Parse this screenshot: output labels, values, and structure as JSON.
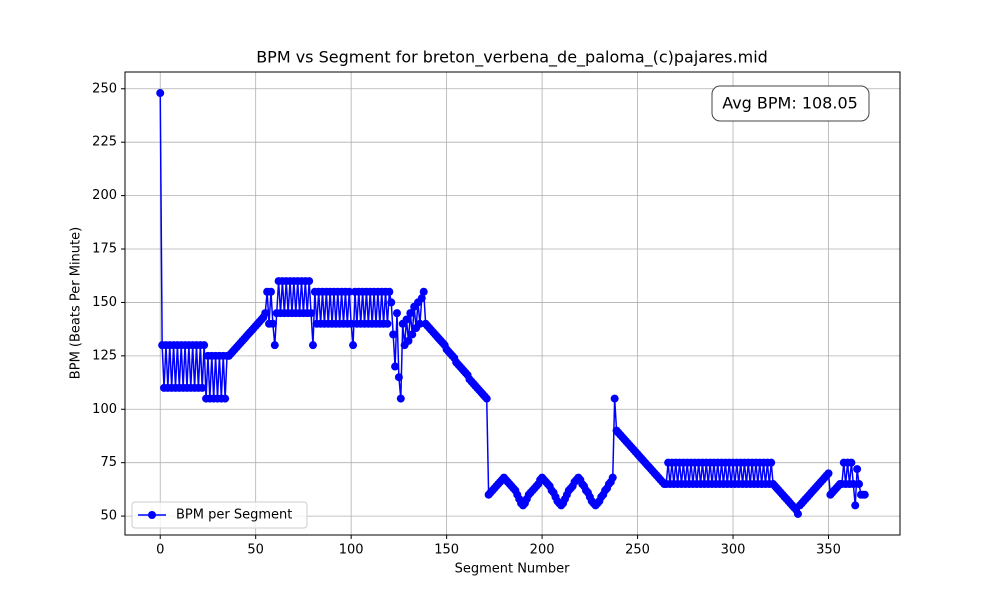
{
  "chart_data": {
    "type": "line",
    "title": "BPM vs Segment for breton_verbena_de_paloma_(c)pajares.mid",
    "x_label": "Segment Number",
    "y_label": "BPM (Beats Per Minute)",
    "annotation": "Avg BPM: 108.05",
    "legend_position": "lower left",
    "grid": true,
    "xlim": [
      -18.45,
      387.45
    ],
    "ylim": [
      41.15,
      257.85
    ],
    "xticks": [
      0,
      50,
      100,
      150,
      200,
      250,
      300,
      350
    ],
    "yticks": [
      50,
      75,
      100,
      125,
      150,
      175,
      200,
      225,
      250
    ],
    "x": [
      0,
      1,
      2,
      3,
      4,
      5,
      6,
      7,
      8,
      9,
      10,
      11,
      12,
      13,
      14,
      15,
      16,
      17,
      18,
      19,
      20,
      21,
      22,
      23,
      24,
      25,
      26,
      27,
      28,
      29,
      30,
      31,
      32,
      33,
      34,
      35,
      36,
      37,
      38,
      39,
      40,
      41,
      42,
      43,
      44,
      45,
      46,
      47,
      48,
      49,
      50,
      51,
      52,
      53,
      54,
      55,
      56,
      57,
      58,
      59,
      60,
      61,
      62,
      63,
      64,
      65,
      66,
      67,
      68,
      69,
      70,
      71,
      72,
      73,
      74,
      75,
      76,
      77,
      78,
      79,
      80,
      81,
      82,
      83,
      84,
      85,
      86,
      87,
      88,
      89,
      90,
      91,
      92,
      93,
      94,
      95,
      96,
      97,
      98,
      99,
      100,
      101,
      102,
      103,
      104,
      105,
      106,
      107,
      108,
      109,
      110,
      111,
      112,
      113,
      114,
      115,
      116,
      117,
      118,
      119,
      120,
      121,
      122,
      123,
      124,
      125,
      126,
      127,
      128,
      129,
      130,
      131,
      132,
      133,
      134,
      135,
      136,
      137,
      138,
      139,
      140,
      141,
      142,
      143,
      144,
      145,
      146,
      147,
      148,
      149,
      150,
      151,
      152,
      153,
      154,
      155,
      156,
      157,
      158,
      159,
      160,
      161,
      162,
      163,
      164,
      165,
      166,
      167,
      168,
      169,
      170,
      171,
      172,
      173,
      174,
      175,
      176,
      177,
      178,
      179,
      180,
      181,
      182,
      183,
      184,
      185,
      186,
      187,
      188,
      189,
      190,
      191,
      192,
      193,
      194,
      195,
      196,
      197,
      198,
      199,
      200,
      201,
      202,
      203,
      204,
      205,
      206,
      207,
      208,
      209,
      210,
      211,
      212,
      213,
      214,
      215,
      216,
      217,
      218,
      219,
      220,
      221,
      222,
      223,
      224,
      225,
      226,
      227,
      228,
      229,
      230,
      231,
      232,
      233,
      234,
      235,
      236,
      237,
      238,
      239,
      240,
      241,
      242,
      243,
      244,
      245,
      246,
      247,
      248,
      249,
      250,
      251,
      252,
      253,
      254,
      255,
      256,
      257,
      258,
      259,
      260,
      261,
      262,
      263,
      264,
      265,
      266,
      267,
      268,
      269,
      270,
      271,
      272,
      273,
      274,
      275,
      276,
      277,
      278,
      279,
      280,
      281,
      282,
      283,
      284,
      285,
      286,
      287,
      288,
      289,
      290,
      291,
      292,
      293,
      294,
      295,
      296,
      297,
      298,
      299,
      300,
      301,
      302,
      303,
      304,
      305,
      306,
      307,
      308,
      309,
      310,
      311,
      312,
      313,
      314,
      315,
      316,
      317,
      318,
      319,
      320,
      321,
      322,
      323,
      324,
      325,
      326,
      327,
      328,
      329,
      330,
      331,
      332,
      333,
      334,
      335,
      336,
      337,
      338,
      339,
      340,
      341,
      342,
      343,
      344,
      345,
      346,
      347,
      348,
      349,
      350,
      351,
      352,
      353,
      354,
      355,
      356,
      357,
      358,
      359,
      360,
      361,
      362,
      363,
      364,
      365,
      366,
      367,
      368,
      369
    ],
    "series": [
      {
        "name": "BPM per Segment",
        "color": "#0000ff",
        "values": [
          248,
          130,
          110,
          130,
          110,
          130,
          110,
          130,
          110,
          130,
          110,
          130,
          110,
          130,
          110,
          130,
          110,
          130,
          110,
          130,
          110,
          130,
          110,
          130,
          105,
          125,
          105,
          125,
          105,
          125,
          105,
          125,
          105,
          125,
          105,
          125,
          125,
          126,
          127,
          128,
          129,
          130,
          131,
          132,
          133,
          134,
          135,
          136,
          137,
          138,
          139,
          140,
          141,
          142,
          143,
          145,
          155,
          140,
          155,
          140,
          130,
          145,
          160,
          145,
          160,
          145,
          160,
          145,
          160,
          145,
          160,
          145,
          160,
          145,
          160,
          145,
          160,
          145,
          160,
          145,
          130,
          155,
          140,
          155,
          140,
          155,
          140,
          155,
          140,
          155,
          140,
          155,
          140,
          155,
          140,
          155,
          140,
          155,
          140,
          155,
          140,
          130,
          155,
          140,
          155,
          140,
          155,
          140,
          155,
          140,
          155,
          140,
          155,
          140,
          155,
          140,
          155,
          140,
          155,
          140,
          155,
          150,
          135,
          120,
          145,
          115,
          105,
          140,
          130,
          142,
          132,
          145,
          135,
          148,
          138,
          150,
          140,
          152,
          155,
          140,
          139,
          138,
          137,
          136,
          135,
          134,
          133,
          132,
          131,
          130,
          128,
          127,
          126,
          125,
          124,
          122,
          121,
          120,
          119,
          118,
          117,
          116,
          114,
          113,
          112,
          111,
          110,
          109,
          108,
          107,
          106,
          105,
          60,
          61,
          62,
          63,
          64,
          65,
          66,
          67,
          68,
          67,
          66,
          65,
          64,
          63,
          62,
          60,
          58,
          56,
          55,
          56,
          58,
          60,
          61,
          62,
          63,
          64,
          65,
          67,
          68,
          67,
          66,
          65,
          64,
          62,
          61,
          59,
          57,
          56,
          55,
          56,
          58,
          60,
          62,
          63,
          64,
          66,
          67,
          68,
          67,
          65,
          64,
          62,
          61,
          59,
          57,
          56,
          55,
          56,
          57,
          59,
          60,
          62,
          63,
          65,
          66,
          68,
          105,
          90,
          89,
          88,
          87,
          86,
          85,
          84,
          83,
          82,
          81,
          80,
          79,
          78,
          77,
          76,
          75,
          74,
          73,
          72,
          71,
          70,
          69,
          68,
          67,
          66,
          65,
          65,
          75,
          65,
          75,
          65,
          75,
          65,
          75,
          65,
          75,
          65,
          75,
          65,
          75,
          65,
          75,
          65,
          75,
          65,
          75,
          65,
          75,
          65,
          75,
          65,
          75,
          65,
          75,
          65,
          75,
          65,
          75,
          65,
          75,
          65,
          75,
          65,
          75,
          65,
          75,
          65,
          75,
          65,
          75,
          65,
          75,
          65,
          75,
          65,
          75,
          65,
          75,
          65,
          75,
          65,
          75,
          65,
          64,
          63,
          62,
          61,
          60,
          59,
          58,
          57,
          56,
          55,
          54,
          53,
          51,
          55,
          56,
          57,
          58,
          59,
          60,
          61,
          62,
          63,
          64,
          65,
          66,
          67,
          68,
          69,
          70,
          60,
          61,
          62,
          63,
          64,
          65,
          65,
          75,
          65,
          75,
          65,
          75,
          65,
          55,
          72,
          65,
          60,
          60,
          60
        ]
      }
    ]
  }
}
